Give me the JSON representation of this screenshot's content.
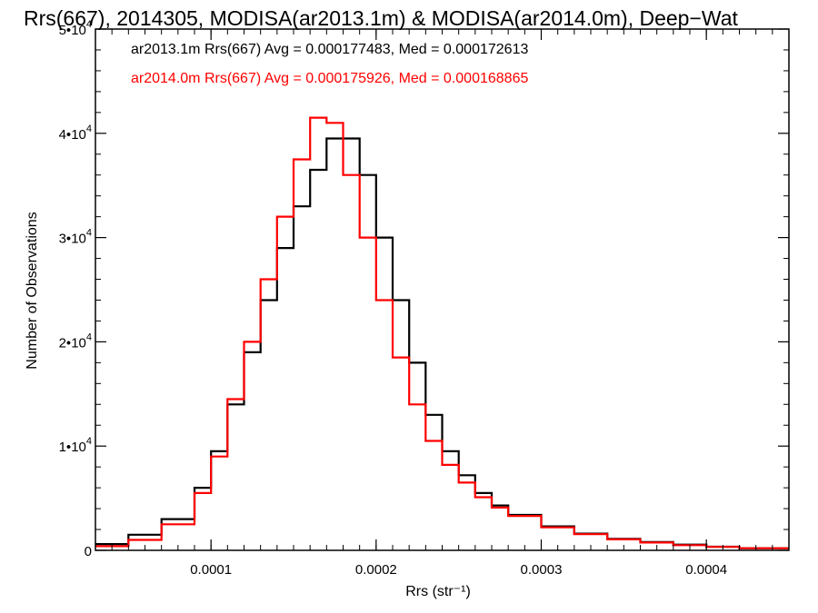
{
  "chart_data": {
    "type": "line",
    "title": "Rrs(667), 2014305, MODISA(ar2013.1m) & MODISA(ar2014.0m), Deep−Wat",
    "xlabel": "Rrs (str⁻¹)",
    "ylabel": "Number of Observations",
    "xlim": [
      3e-05,
      0.00045
    ],
    "ylim": [
      0,
      50000
    ],
    "grid": false,
    "x_ticks": [
      {
        "value": 0.0001,
        "label": "0.0001"
      },
      {
        "value": 0.0002,
        "label": "0.0002"
      },
      {
        "value": 0.0003,
        "label": "0.0003"
      },
      {
        "value": 0.0004,
        "label": "0.0004"
      }
    ],
    "y_ticks": [
      {
        "value": 0,
        "label": "0"
      },
      {
        "value": 10000,
        "mant": "1•10",
        "exp": "4"
      },
      {
        "value": 20000,
        "mant": "2•10",
        "exp": "4"
      },
      {
        "value": 30000,
        "mant": "3•10",
        "exp": "4"
      },
      {
        "value": 40000,
        "mant": "4•10",
        "exp": "4"
      },
      {
        "value": 50000,
        "mant": "5•10",
        "exp": "4"
      }
    ],
    "x": [
      3e-05,
      5e-05,
      7e-05,
      9e-05,
      0.0001,
      0.00011,
      0.00012,
      0.00013,
      0.00014,
      0.00015,
      0.00016,
      0.00017,
      0.00018,
      0.00019,
      0.0002,
      0.00021,
      0.00022,
      0.00023,
      0.00024,
      0.00025,
      0.00026,
      0.00027,
      0.00028,
      0.0003,
      0.00032,
      0.00034,
      0.00036,
      0.00038,
      0.0004,
      0.00042,
      0.00045
    ],
    "series": [
      {
        "name": "ar2013.1m Rrs(667) Avg = 0.000177483, Med = 0.000172613",
        "color": "#000000",
        "values": [
          600,
          1500,
          3000,
          6000,
          9500,
          14000,
          19000,
          24000,
          29000,
          33000,
          36500,
          39500,
          39500,
          36000,
          30000,
          24000,
          18000,
          13000,
          9500,
          7200,
          5500,
          4300,
          3400,
          2300,
          1600,
          1100,
          800,
          550,
          350,
          200,
          100
        ]
      },
      {
        "name": "ar2014.0m Rrs(667) Avg = 0.000175926, Med = 0.000168865",
        "color": "#ff0000",
        "values": [
          400,
          1000,
          2500,
          5500,
          9000,
          14500,
          20000,
          26000,
          32000,
          37500,
          41500,
          41000,
          36000,
          30000,
          24000,
          18500,
          14000,
          10500,
          8200,
          6500,
          5100,
          4100,
          3300,
          2200,
          1550,
          1050,
          750,
          500,
          330,
          200,
          100
        ]
      }
    ]
  }
}
